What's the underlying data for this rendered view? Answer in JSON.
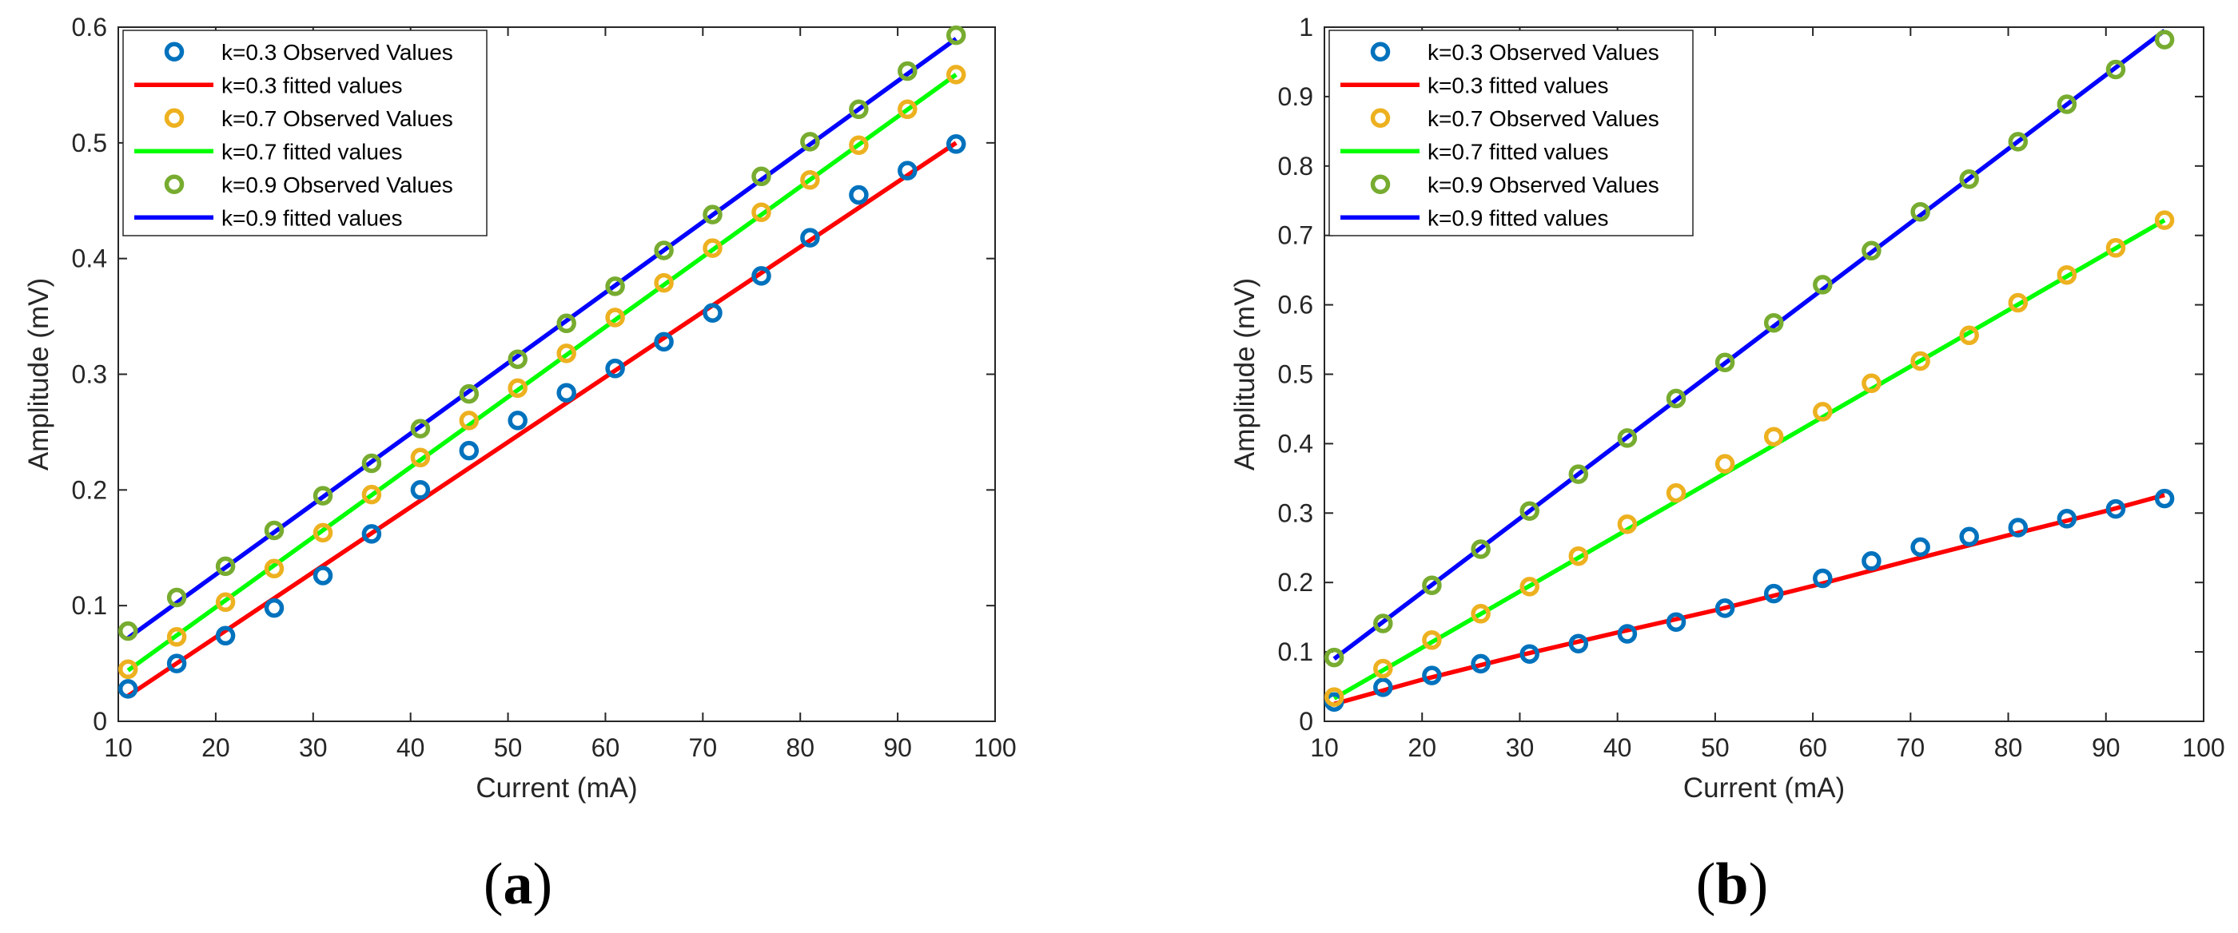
{
  "chart_data": [
    {
      "type": "line",
      "panel_label": "a",
      "title": "",
      "xlabel": "Current (mA)",
      "ylabel": "Amplitude (mV)",
      "xlim": [
        10,
        100
      ],
      "ylim": [
        0,
        0.6
      ],
      "x_ticks": [
        10,
        20,
        30,
        40,
        50,
        60,
        70,
        80,
        90,
        100
      ],
      "y_ticks": [
        0,
        0.1,
        0.2,
        0.3,
        0.4,
        0.5,
        0.6
      ],
      "grid": false,
      "legend_position": "top-left",
      "x": [
        11,
        16,
        21,
        26,
        31,
        36,
        41,
        46,
        51,
        56,
        61,
        66,
        71,
        76,
        81,
        86,
        91,
        96
      ],
      "series": [
        {
          "name": "k=0.3 Observed Values",
          "kind": "markers",
          "color": "#0072BD",
          "values": [
            0.028,
            0.05,
            0.074,
            0.098,
            0.126,
            0.162,
            0.2,
            0.234,
            0.26,
            0.284,
            0.305,
            0.328,
            0.353,
            0.385,
            0.418,
            0.455,
            0.476,
            0.499
          ]
        },
        {
          "name": "k=0.3 fitted values",
          "kind": "line",
          "color": "#FF0000",
          "endpoints": [
            [
              11,
              0.022
            ],
            [
              96,
              0.5
            ]
          ]
        },
        {
          "name": "k=0.7 Observed Values",
          "kind": "markers",
          "color": "#EDB120",
          "values": [
            0.045,
            0.073,
            0.103,
            0.132,
            0.163,
            0.196,
            0.228,
            0.26,
            0.288,
            0.318,
            0.349,
            0.379,
            0.409,
            0.44,
            0.468,
            0.498,
            0.529,
            0.559
          ]
        },
        {
          "name": "k=0.7 fitted values",
          "kind": "line",
          "color": "#00FF00",
          "endpoints": [
            [
              11,
              0.044
            ],
            [
              96,
              0.559
            ]
          ]
        },
        {
          "name": "k=0.9 Observed Values",
          "kind": "markers",
          "color": "#77AC30",
          "values": [
            0.078,
            0.107,
            0.134,
            0.165,
            0.195,
            0.223,
            0.253,
            0.283,
            0.313,
            0.344,
            0.376,
            0.407,
            0.438,
            0.471,
            0.501,
            0.529,
            0.562,
            0.593
          ]
        },
        {
          "name": "k=0.9 fitted values",
          "kind": "line",
          "color": "#0000FF",
          "endpoints": [
            [
              11,
              0.072
            ],
            [
              96,
              0.59
            ]
          ]
        }
      ]
    },
    {
      "type": "line",
      "panel_label": "b",
      "title": "",
      "xlabel": "Current (mA)",
      "ylabel": "Amplitude (mV)",
      "xlim": [
        10,
        100
      ],
      "ylim": [
        0,
        1
      ],
      "x_ticks": [
        10,
        20,
        30,
        40,
        50,
        60,
        70,
        80,
        90,
        100
      ],
      "y_ticks": [
        0,
        0.1,
        0.2,
        0.3,
        0.4,
        0.5,
        0.6,
        0.7,
        0.8,
        0.9,
        1
      ],
      "grid": false,
      "legend_position": "top-left",
      "x": [
        11,
        16,
        21,
        26,
        31,
        36,
        41,
        46,
        51,
        56,
        61,
        66,
        71,
        76,
        81,
        86,
        91,
        96
      ],
      "series": [
        {
          "name": "k=0.3 Observed Values",
          "kind": "markers",
          "color": "#0072BD",
          "values": [
            0.028,
            0.049,
            0.066,
            0.083,
            0.097,
            0.112,
            0.126,
            0.143,
            0.163,
            0.184,
            0.206,
            0.231,
            0.251,
            0.266,
            0.279,
            0.292,
            0.306,
            0.321
          ]
        },
        {
          "name": "k=0.3 fitted values",
          "kind": "line",
          "color": "#FF0000",
          "x": [
            11,
            20,
            30,
            40,
            50,
            60,
            70,
            80,
            90,
            96
          ],
          "values": [
            0.025,
            0.06,
            0.095,
            0.128,
            0.16,
            0.195,
            0.232,
            0.268,
            0.303,
            0.326
          ]
        },
        {
          "name": "k=0.7 Observed Values",
          "kind": "markers",
          "color": "#EDB120",
          "values": [
            0.035,
            0.076,
            0.117,
            0.155,
            0.194,
            0.238,
            0.284,
            0.329,
            0.371,
            0.41,
            0.446,
            0.487,
            0.519,
            0.556,
            0.603,
            0.643,
            0.682,
            0.722
          ]
        },
        {
          "name": "k=0.7 fitted values",
          "kind": "line",
          "color": "#00FF00",
          "endpoints": [
            [
              11,
              0.033
            ],
            [
              96,
              0.722
            ]
          ]
        },
        {
          "name": "k=0.9 Observed Values",
          "kind": "markers",
          "color": "#77AC30",
          "values": [
            0.092,
            0.141,
            0.196,
            0.248,
            0.303,
            0.356,
            0.408,
            0.465,
            0.517,
            0.574,
            0.629,
            0.678,
            0.734,
            0.781,
            0.835,
            0.889,
            0.939,
            0.982
          ]
        },
        {
          "name": "k=0.9 fitted values",
          "kind": "line",
          "color": "#0000FF",
          "endpoints": [
            [
              11,
              0.09
            ],
            [
              96,
              0.995
            ]
          ]
        }
      ]
    }
  ]
}
